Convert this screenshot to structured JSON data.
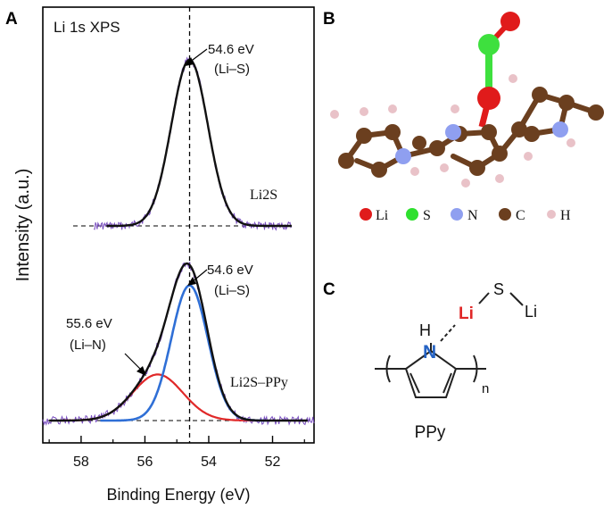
{
  "panels": {
    "a": "A",
    "b": "B",
    "c": "C"
  },
  "chart_data": {
    "type": "line",
    "title": "Li 1s XPS",
    "xlabel": "Binding Energy (eV)",
    "ylabel": "Intensity (a.u.)",
    "xlim": [
      59.2,
      50.7
    ],
    "x_reversed": true,
    "xticks": [
      "58",
      "56",
      "54",
      "52"
    ],
    "reference_line_x": 54.6,
    "grid": false,
    "panels": [
      {
        "sample": "Li2S",
        "annotation_eV": "54.6 eV",
        "annotation_bond": "(Li–S)",
        "series": [
          {
            "label": "fit",
            "color": "#111111",
            "center": 54.6,
            "fwhm": 1.35,
            "height": 0.62
          }
        ],
        "noise_color": "#7a4fc0"
      },
      {
        "sample": "Li2S–PPy",
        "annotations": [
          {
            "eV": "54.6 eV",
            "bond": "(Li–S)"
          },
          {
            "eV": "55.6 eV",
            "bond": "(Li–N)"
          }
        ],
        "series": [
          {
            "label": "Li–S component",
            "color": "#2f6fd6",
            "center": 54.6,
            "fwhm": 1.35,
            "height": 0.88
          },
          {
            "label": "Li–N component",
            "color": "#e02828",
            "center": 55.6,
            "fwhm": 1.85,
            "height": 0.3
          },
          {
            "label": "envelope",
            "color": "#111111",
            "center": null,
            "fwhm": null,
            "height": null
          }
        ],
        "noise_color": "#7a4fc0"
      }
    ]
  },
  "legend_b": [
    {
      "symbol": "Li",
      "color": "#e01b1b"
    },
    {
      "symbol": "S",
      "color": "#2ee02e"
    },
    {
      "symbol": "N",
      "color": "#8f9ff0"
    },
    {
      "symbol": "C",
      "color": "#6b3f1f"
    },
    {
      "symbol": "H",
      "color": "#e9c2c8"
    }
  ],
  "structure_c": {
    "h": "H",
    "n": "N",
    "li_red": "Li",
    "s": "S",
    "li": "Li",
    "subscript": "n",
    "name": "PPy"
  }
}
